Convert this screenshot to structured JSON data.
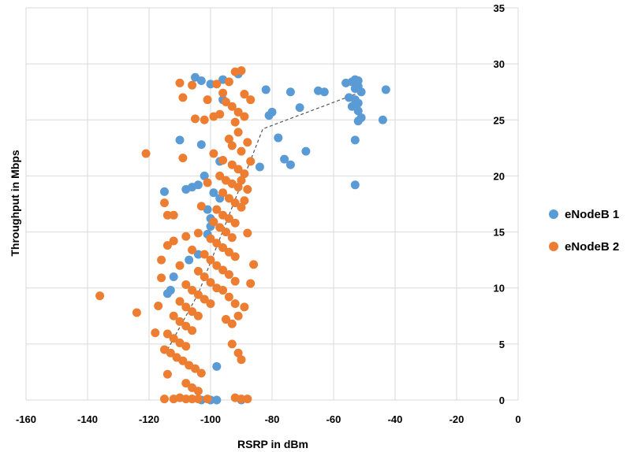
{
  "chart_data": {
    "type": "scatter",
    "title": "",
    "xlabel": "RSRP in dBm",
    "ylabel": "Throughput in Mbps",
    "xlim": [
      -160,
      0
    ],
    "ylim": [
      0,
      35
    ],
    "x_ticks": [
      -160,
      -140,
      -120,
      -100,
      -80,
      -60,
      -40,
      -20,
      0
    ],
    "x_tick_labels": [
      "-160",
      "-140",
      "-120",
      "-100",
      "-80",
      "-60",
      "-40",
      "-20",
      "0"
    ],
    "y_ticks": [
      0,
      5,
      10,
      15,
      20,
      25,
      30,
      35
    ],
    "y_tick_labels": [
      "0",
      "5",
      "10",
      "15",
      "20",
      "25",
      "30",
      "35"
    ],
    "grid": true,
    "legend_position": "right",
    "series": [
      {
        "name": "eNodeB 1",
        "color": "#5B9BD5",
        "points": [
          [
            -105,
            28.8
          ],
          [
            -103,
            28.5
          ],
          [
            -100,
            28.2
          ],
          [
            -96,
            28.6
          ],
          [
            -91,
            29.1
          ],
          [
            -82,
            27.7
          ],
          [
            -74,
            27.5
          ],
          [
            -65,
            27.6
          ],
          [
            -63,
            27.5
          ],
          [
            -56,
            28.3
          ],
          [
            -54,
            28.4
          ],
          [
            -53,
            28.6
          ],
          [
            -52,
            28.5
          ],
          [
            -52,
            28.0
          ],
          [
            -53,
            27.8
          ],
          [
            -51,
            27.5
          ],
          [
            -55,
            27.0
          ],
          [
            -53,
            26.8
          ],
          [
            -52,
            26.5
          ],
          [
            -54,
            26.2
          ],
          [
            -52,
            25.8
          ],
          [
            -51,
            25.2
          ],
          [
            -52,
            24.9
          ],
          [
            -44,
            25.0
          ],
          [
            -43,
            27.7
          ],
          [
            -71,
            26.1
          ],
          [
            -80,
            25.7
          ],
          [
            -81,
            25.4
          ],
          [
            -78,
            23.4
          ],
          [
            -69,
            22.2
          ],
          [
            -53,
            23.2
          ],
          [
            -53,
            19.2
          ],
          [
            -76,
            21.5
          ],
          [
            -74,
            21.0
          ],
          [
            -84,
            20.8
          ],
          [
            -110,
            23.2
          ],
          [
            -103,
            22.8
          ],
          [
            -102,
            20.0
          ],
          [
            -104,
            19.2
          ],
          [
            -106,
            19.0
          ],
          [
            -108,
            18.8
          ],
          [
            -99,
            18.5
          ],
          [
            -97,
            18.0
          ],
          [
            -115,
            18.6
          ],
          [
            -101,
            17.0
          ],
          [
            -100,
            15.5
          ],
          [
            -101,
            14.8
          ],
          [
            -104,
            13.0
          ],
          [
            -107,
            12.5
          ],
          [
            -112,
            11.0
          ],
          [
            -113,
            9.8
          ],
          [
            -114,
            9.5
          ],
          [
            -96,
            26.8
          ],
          [
            -97,
            21.3
          ],
          [
            -100,
            16.2
          ],
          [
            -98,
            3.0
          ],
          [
            -100,
            0.0
          ],
          [
            -98,
            0.0
          ],
          [
            -103,
            0.0
          ],
          [
            -90,
            0.0
          ]
        ]
      },
      {
        "name": "eNodeB 2",
        "color": "#ED7D31",
        "points": [
          [
            -136,
            9.3
          ],
          [
            -124,
            7.8
          ],
          [
            -118,
            6.0
          ],
          [
            -121,
            22.0
          ],
          [
            -115,
            17.6
          ],
          [
            -114,
            16.5
          ],
          [
            -112,
            16.5
          ],
          [
            -110,
            28.3
          ],
          [
            -109,
            27.0
          ],
          [
            -106,
            28.1
          ],
          [
            -101,
            26.8
          ],
          [
            -98,
            28.2
          ],
          [
            -96,
            27.4
          ],
          [
            -94,
            28.4
          ],
          [
            -92,
            29.3
          ],
          [
            -90,
            29.4
          ],
          [
            -89,
            27.3
          ],
          [
            -87,
            26.8
          ],
          [
            -93,
            26.2
          ],
          [
            -95,
            26.6
          ],
          [
            -91,
            25.7
          ],
          [
            -92,
            24.8
          ],
          [
            -89,
            25.3
          ],
          [
            -105,
            25.1
          ],
          [
            -102,
            25.0
          ],
          [
            -99,
            25.3
          ],
          [
            -97,
            25.5
          ],
          [
            -109,
            21.6
          ],
          [
            -94,
            23.3
          ],
          [
            -91,
            23.9
          ],
          [
            -88,
            23.0
          ],
          [
            -90,
            22.2
          ],
          [
            -96,
            21.4
          ],
          [
            -93,
            21.0
          ],
          [
            -91,
            20.6
          ],
          [
            -89,
            20.2
          ],
          [
            -97,
            20.0
          ],
          [
            -95,
            19.6
          ],
          [
            -93,
            19.3
          ],
          [
            -91,
            19.0
          ],
          [
            -96,
            18.5
          ],
          [
            -94,
            18.0
          ],
          [
            -92,
            17.6
          ],
          [
            -90,
            17.2
          ],
          [
            -98,
            17.0
          ],
          [
            -96,
            16.5
          ],
          [
            -94,
            16.2
          ],
          [
            -99,
            15.9
          ],
          [
            -97,
            15.4
          ],
          [
            -95,
            15.0
          ],
          [
            -93,
            14.5
          ],
          [
            -100,
            14.4
          ],
          [
            -98,
            14.0
          ],
          [
            -96,
            13.6
          ],
          [
            -94,
            13.2
          ],
          [
            -92,
            12.8
          ],
          [
            -102,
            13.0
          ],
          [
            -100,
            12.5
          ],
          [
            -98,
            12.0
          ],
          [
            -96,
            11.6
          ],
          [
            -94,
            11.2
          ],
          [
            -92,
            10.6
          ],
          [
            -104,
            11.5
          ],
          [
            -102,
            11.0
          ],
          [
            -100,
            10.5
          ],
          [
            -98,
            10.0
          ],
          [
            -108,
            10.3
          ],
          [
            -106,
            9.8
          ],
          [
            -104,
            9.4
          ],
          [
            -102,
            9.0
          ],
          [
            -100,
            8.6
          ],
          [
            -110,
            8.8
          ],
          [
            -108,
            8.3
          ],
          [
            -106,
            7.9
          ],
          [
            -104,
            7.5
          ],
          [
            -112,
            7.5
          ],
          [
            -110,
            7.0
          ],
          [
            -108,
            6.6
          ],
          [
            -106,
            6.2
          ],
          [
            -114,
            5.9
          ],
          [
            -112,
            5.5
          ],
          [
            -110,
            5.1
          ],
          [
            -108,
            4.8
          ],
          [
            -115,
            4.5
          ],
          [
            -113,
            4.2
          ],
          [
            -111,
            3.8
          ],
          [
            -109,
            3.5
          ],
          [
            -107,
            3.1
          ],
          [
            -105,
            2.8
          ],
          [
            -103,
            2.4
          ],
          [
            -114,
            2.3
          ],
          [
            -108,
            1.5
          ],
          [
            -106,
            1.1
          ],
          [
            -104,
            0.8
          ],
          [
            -95,
            7.2
          ],
          [
            -93,
            6.8
          ],
          [
            -91,
            7.5
          ],
          [
            -89,
            8.3
          ],
          [
            -93,
            5.0
          ],
          [
            -91,
            4.2
          ],
          [
            -90,
            3.6
          ],
          [
            -96,
            9.8
          ],
          [
            -94,
            9.2
          ],
          [
            -92,
            8.6
          ],
          [
            -115,
            0.1
          ],
          [
            -112,
            0.1
          ],
          [
            -110,
            0.2
          ],
          [
            -108,
            0.1
          ],
          [
            -106,
            0.1
          ],
          [
            -104,
            0.1
          ],
          [
            -101,
            0.1
          ],
          [
            -92,
            0.2
          ],
          [
            -90,
            0.1
          ],
          [
            -88,
            0.1
          ],
          [
            -116,
            12.5
          ],
          [
            -114,
            13.8
          ],
          [
            -112,
            14.2
          ],
          [
            -108,
            14.6
          ],
          [
            -106,
            13.4
          ],
          [
            -104,
            14.9
          ],
          [
            -110,
            12.0
          ],
          [
            -116,
            10.9
          ],
          [
            -117,
            8.4
          ],
          [
            -86,
            12.1
          ],
          [
            -87,
            10.4
          ],
          [
            -88,
            14.9
          ],
          [
            -92,
            15.8
          ],
          [
            -89,
            17.8
          ],
          [
            -90,
            19.6
          ],
          [
            -87,
            21.3
          ],
          [
            -88,
            18.8
          ],
          [
            -93,
            22.7
          ],
          [
            -101,
            19.4
          ],
          [
            -103,
            17.3
          ],
          [
            -99,
            22.0
          ]
        ]
      }
    ],
    "trendline": {
      "style": "dashed",
      "color": "#555555",
      "points": [
        [
          -114,
          4.5
        ],
        [
          -104,
          9.5
        ],
        [
          -83,
          24.2
        ],
        [
          -50,
          27.6
        ]
      ]
    }
  }
}
